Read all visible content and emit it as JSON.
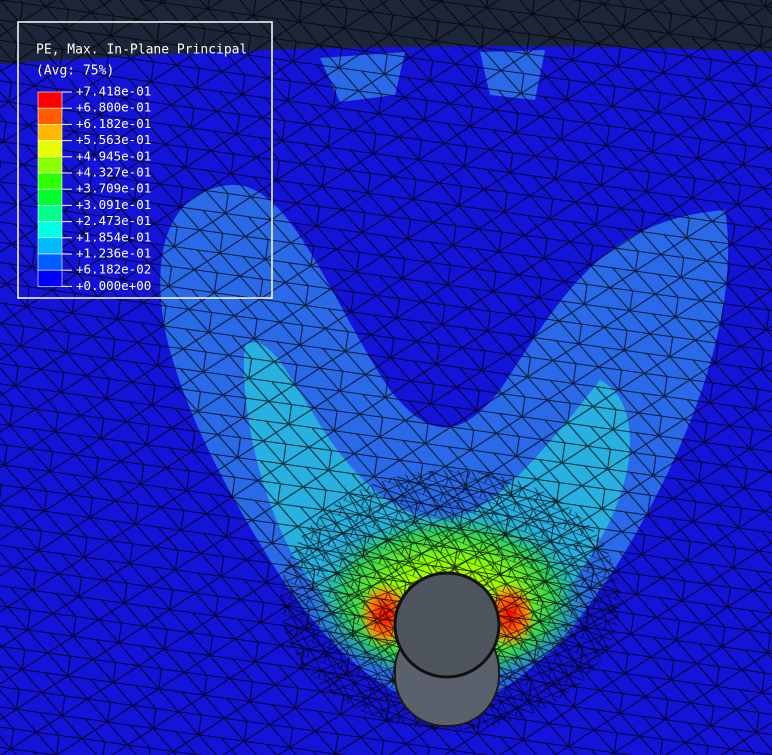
{
  "legend": {
    "title": "PE, Max. In-Plane Principal",
    "subtitle": "(Avg: 75%)",
    "labels": [
      "+7.418e-01",
      "+6.800e-01",
      "+6.182e-01",
      "+5.563e-01",
      "+4.945e-01",
      "+4.327e-01",
      "+3.709e-01",
      "+3.091e-01",
      "+2.473e-01",
      "+1.854e-01",
      "+1.236e-01",
      "+6.182e-02",
      "+0.000e+00"
    ],
    "colors": [
      "#ff0000",
      "#ff5d00",
      "#ffb900",
      "#e8ff00",
      "#8bff00",
      "#2eff00",
      "#00ff2e",
      "#00ff8b",
      "#00ffe8",
      "#00b9ff",
      "#005dff",
      "#0000ff"
    ]
  }
}
